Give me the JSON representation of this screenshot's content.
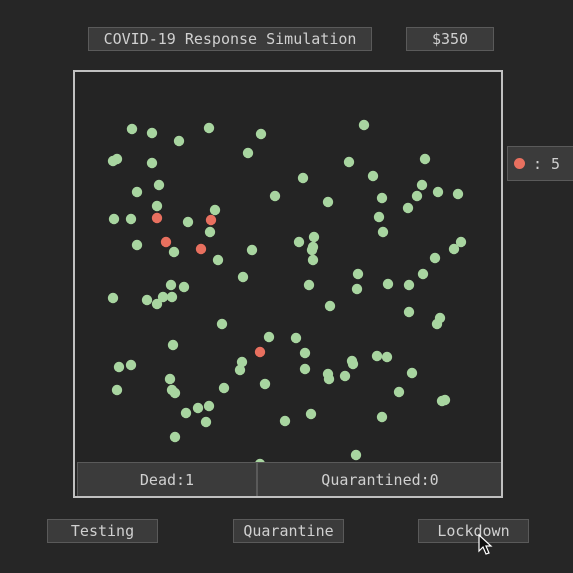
{
  "header": {
    "title": "COVID-19 Response Simulation",
    "money": "$350"
  },
  "side_panel": {
    "infected_label": ": 5",
    "infected_icon": "red-dot-icon"
  },
  "status": {
    "dead": "Dead:1",
    "quarantined": "Quarantined:0"
  },
  "buttons": {
    "testing": "Testing",
    "quarantine": "Quarantine",
    "lockdown": "Lockdown"
  },
  "colors": {
    "healthy": "#a8d5a0",
    "infected": "#e8705f",
    "background": "#262626",
    "arena_border": "#c0c0c0"
  },
  "population": {
    "healthy_count": 105,
    "infected_count": 5
  }
}
